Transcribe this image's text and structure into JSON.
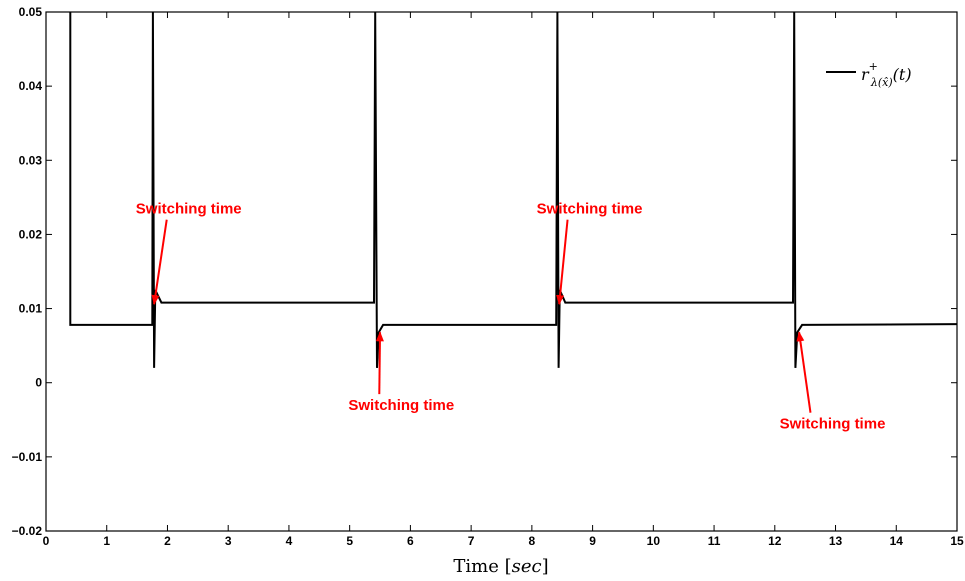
{
  "chart_data": {
    "type": "line",
    "title": "",
    "xlabel": "Time",
    "xlabel_unit": "sec",
    "ylabel": "",
    "xlim": [
      0,
      15
    ],
    "ylim": [
      -0.02,
      0.05
    ],
    "x_ticks": [
      0,
      1,
      2,
      3,
      4,
      5,
      6,
      7,
      8,
      9,
      10,
      11,
      12,
      13,
      14,
      15
    ],
    "y_ticks": [
      -0.02,
      -0.01,
      0,
      0.01,
      0.02,
      0.03,
      0.04,
      0.05
    ],
    "y_tick_labels": [
      "−0.02",
      "−0.01",
      "0",
      "0.01",
      "0.02",
      "0.03",
      "0.04",
      "0.05"
    ],
    "grid": false,
    "legend": {
      "position": "top-right",
      "entries": [
        {
          "main": "r",
          "sup": "+",
          "sub": "λ(x̂)",
          "tail": "(t)",
          "color": "#000000"
        }
      ]
    },
    "series": [
      {
        "color": "#000000",
        "x": [
          0.4,
          0.4,
          1.75,
          1.76,
          1.78,
          1.8,
          1.9,
          5.4,
          5.42,
          5.45,
          5.48,
          5.55,
          8.4,
          8.42,
          8.44,
          8.46,
          8.55,
          12.3,
          12.32,
          12.34,
          12.37,
          12.45,
          15.0
        ],
        "y": [
          0.05,
          0.0078,
          0.0078,
          0.05,
          0.002,
          0.0125,
          0.0108,
          0.0108,
          0.05,
          0.002,
          0.0068,
          0.0078,
          0.0078,
          0.05,
          0.002,
          0.0125,
          0.0108,
          0.0108,
          0.05,
          0.002,
          0.0068,
          0.0078,
          0.0079
        ]
      }
    ],
    "annotations": [
      {
        "text": "Switching time",
        "text_x": 2.35,
        "text_y": 0.0228,
        "arrow_to_x": 1.78,
        "arrow_to_y": 0.0106
      },
      {
        "text": "Switching time",
        "text_x": 5.85,
        "text_y": -0.0037,
        "arrow_to_x": 5.5,
        "arrow_to_y": 0.0068
      },
      {
        "text": "Switching time",
        "text_x": 8.95,
        "text_y": 0.0228,
        "arrow_to_x": 8.45,
        "arrow_to_y": 0.0106
      },
      {
        "text": "Switching time",
        "text_x": 12.95,
        "text_y": -0.0062,
        "arrow_to_x": 12.4,
        "arrow_to_y": 0.0068
      }
    ],
    "colors": {
      "line": "#000000",
      "annotation": "#ff0000"
    }
  }
}
